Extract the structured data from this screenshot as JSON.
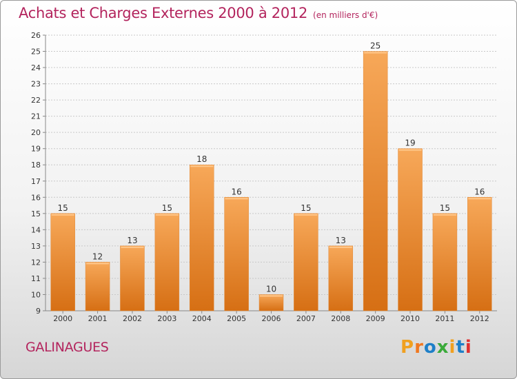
{
  "header": {
    "title": "Achats et Charges Externes 2000 à 2012",
    "subtitle": "(en milliers d'€)"
  },
  "footer": {
    "commune": "GALINAGUES",
    "logo_text": "Proxiti"
  },
  "colors": {
    "title": "#b3245d",
    "bar_top": "#f7a859",
    "bar_bottom": "#d66f14",
    "logo": [
      "#f0a020",
      "#f07820",
      "#1e7fc8",
      "#3aaa3a",
      "#f0a020",
      "#1e7fc8",
      "#e03030"
    ]
  },
  "chart_data": {
    "type": "bar",
    "categories": [
      "2000",
      "2001",
      "2002",
      "2003",
      "2004",
      "2005",
      "2006",
      "2007",
      "2008",
      "2009",
      "2010",
      "2011",
      "2012"
    ],
    "values": [
      15,
      12,
      13,
      15,
      18,
      16,
      10,
      15,
      13,
      25,
      19,
      15,
      16
    ],
    "ylim": [
      9,
      26
    ],
    "yticks": [
      9,
      10,
      11,
      12,
      13,
      14,
      15,
      16,
      17,
      18,
      19,
      20,
      21,
      22,
      23,
      24,
      25,
      26
    ],
    "grid": true,
    "xlabel": "",
    "ylabel": ""
  }
}
